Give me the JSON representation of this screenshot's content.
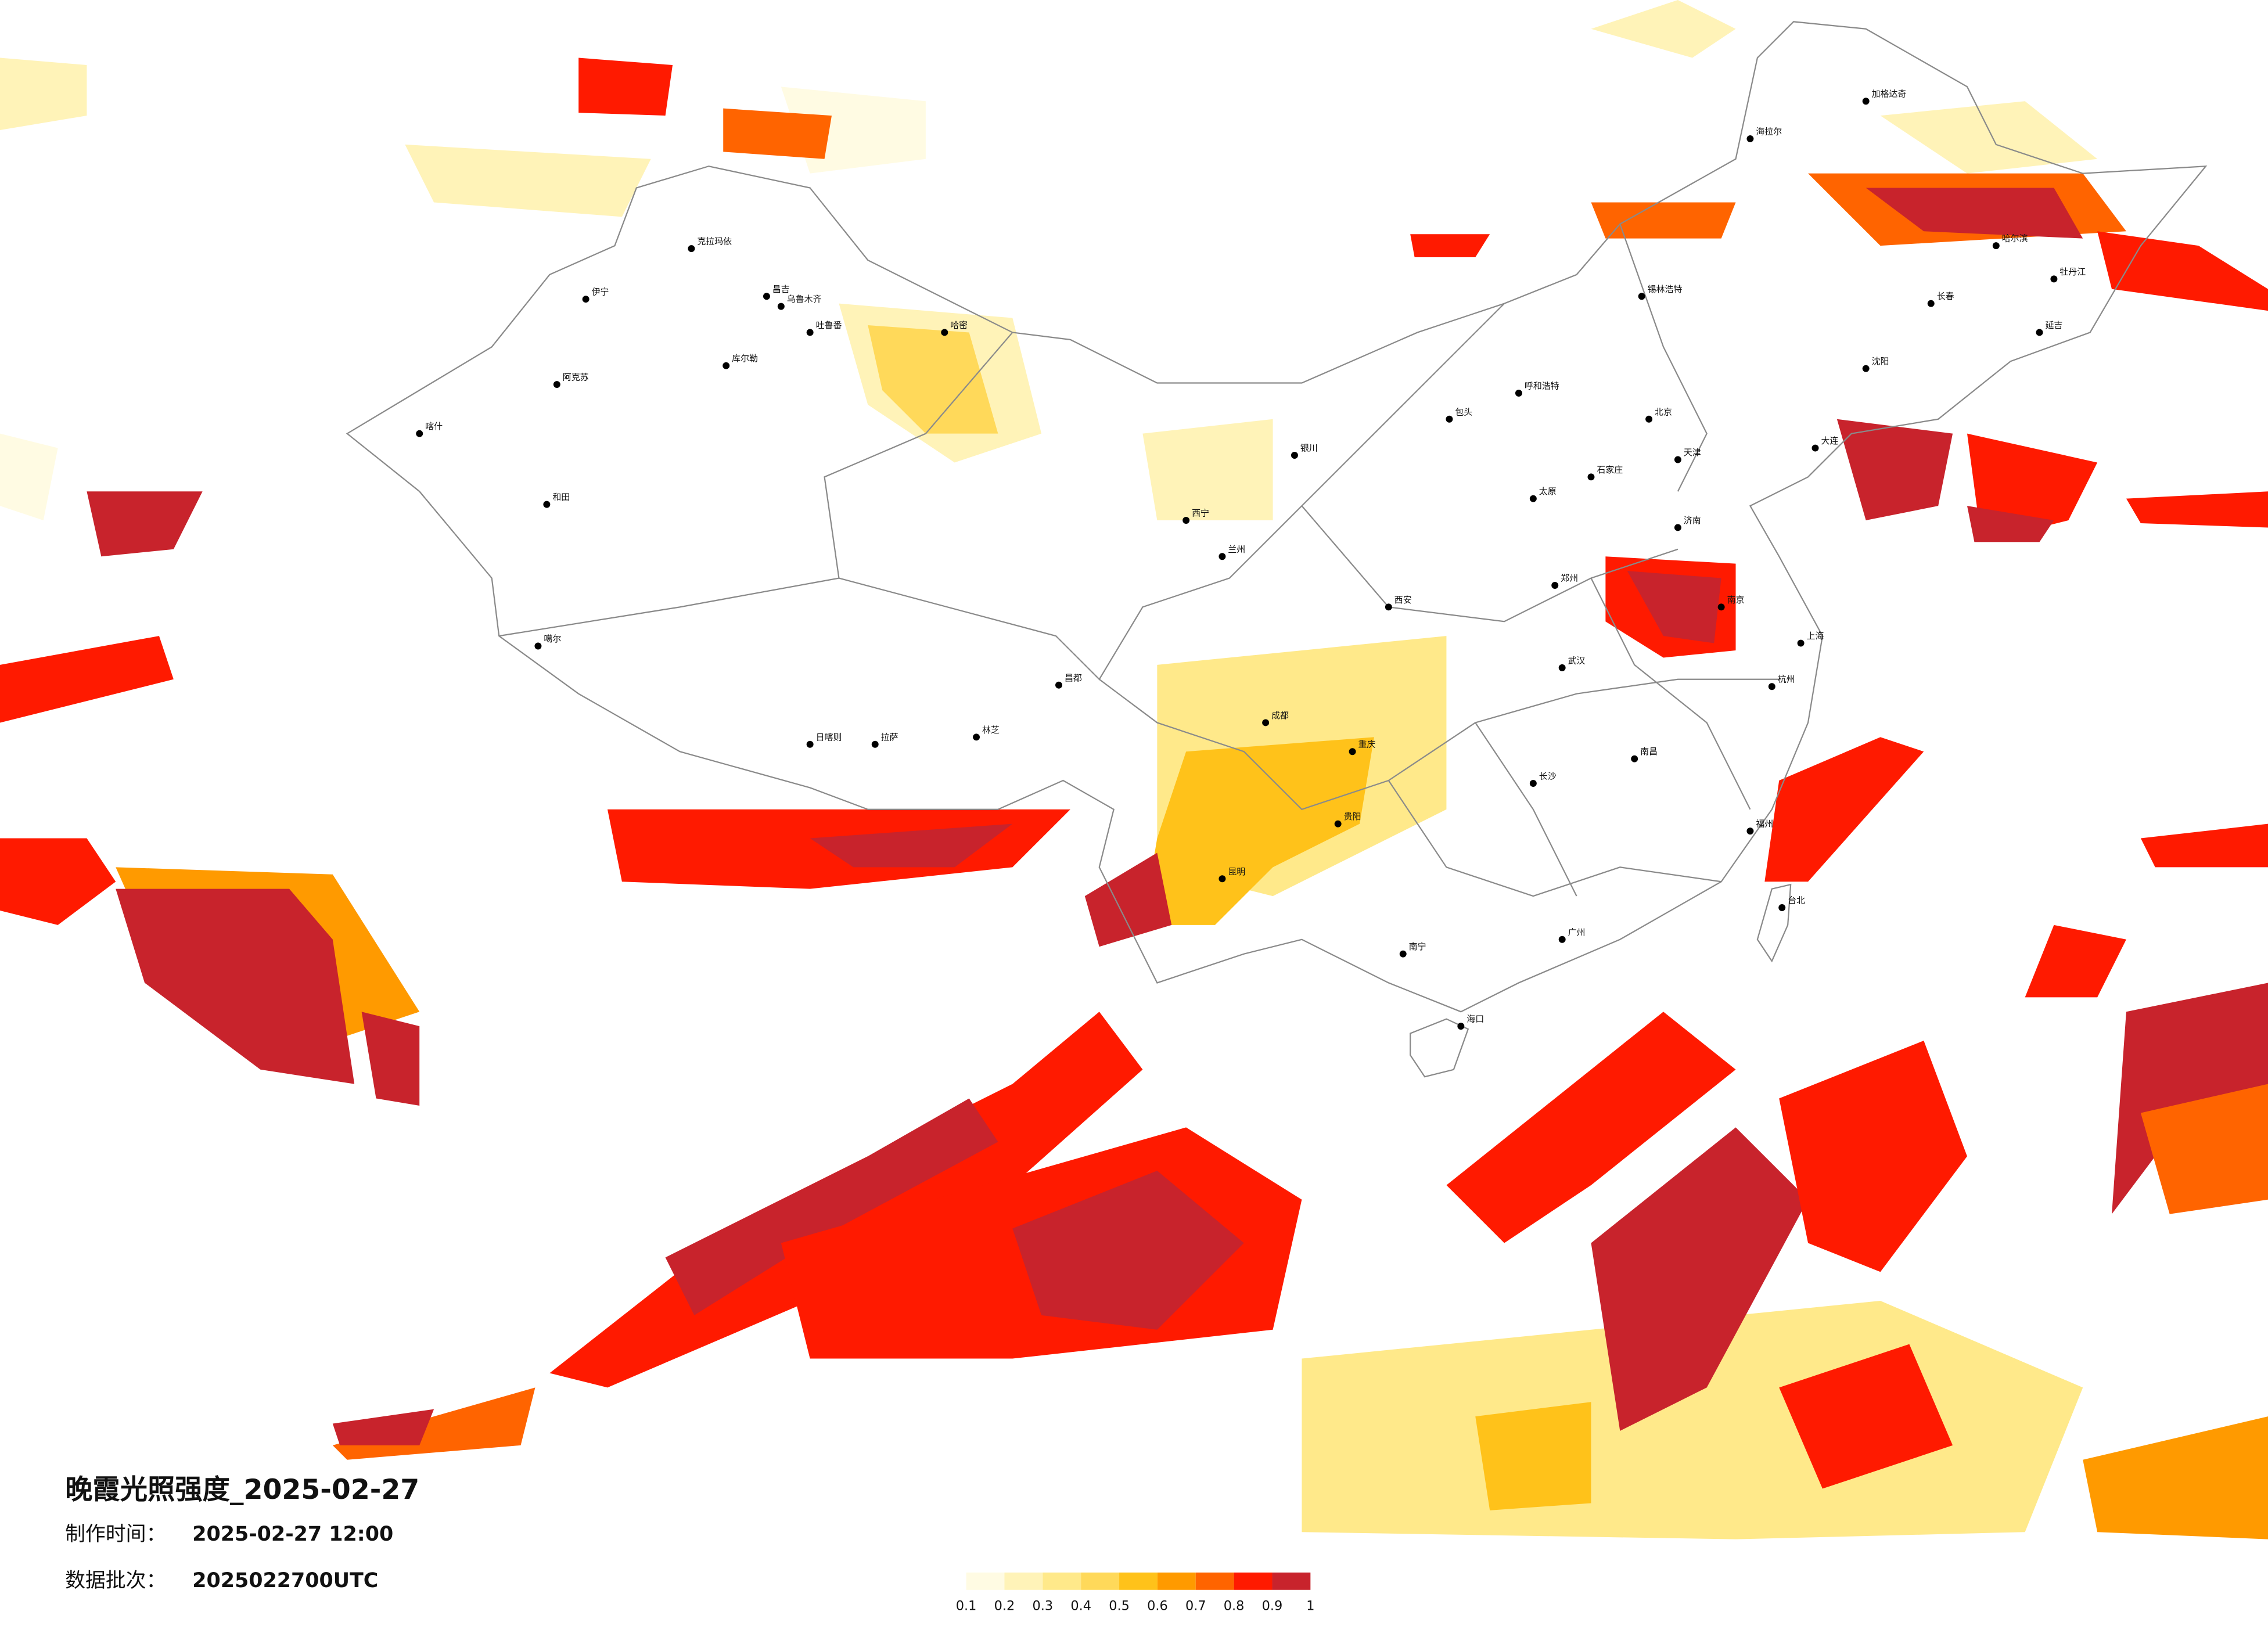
{
  "title": "晚霞光照强度_2025-02-27",
  "production_time": {
    "label": "制作时间：",
    "value": "2025-02-27 12:00"
  },
  "batch": {
    "label": "数据批次：",
    "value": "2025022700UTC"
  },
  "colorbar": {
    "colors": [
      "#fffbe3",
      "#fff3b8",
      "#ffe98a",
      "#ffd95a",
      "#ffc21a",
      "#ff9a00",
      "#ff6400",
      "#ff1a00",
      "#c8232c"
    ],
    "labels": [
      0.1,
      0.2,
      0.3,
      0.4,
      0.5,
      0.6,
      0.7,
      0.8,
      0.9,
      1
    ]
  },
  "cities": [
    "喀什",
    "和田",
    "阿克苏",
    "伊宁",
    "克拉玛依",
    "昌吉",
    "乌鲁木齐",
    "吐鲁番",
    "库尔勒",
    "哈密",
    "噶尔",
    "日喀则",
    "拉萨",
    "林芝",
    "昌都",
    "西宁",
    "兰州",
    "银川",
    "呼和浩特",
    "包头",
    "北京",
    "天津",
    "石家庄",
    "太原",
    "济南",
    "郑州",
    "西安",
    "成都",
    "重庆",
    "武汉",
    "长沙",
    "南昌",
    "南京",
    "上海",
    "杭州",
    "福州",
    "广州",
    "南宁",
    "海口",
    "昆明",
    "贵阳",
    "哈尔滨",
    "长春",
    "沈阳",
    "大连",
    "台北",
    "海拉尔",
    "加格达奇",
    "锡林浩特",
    "牡丹江",
    "延吉"
  ]
}
